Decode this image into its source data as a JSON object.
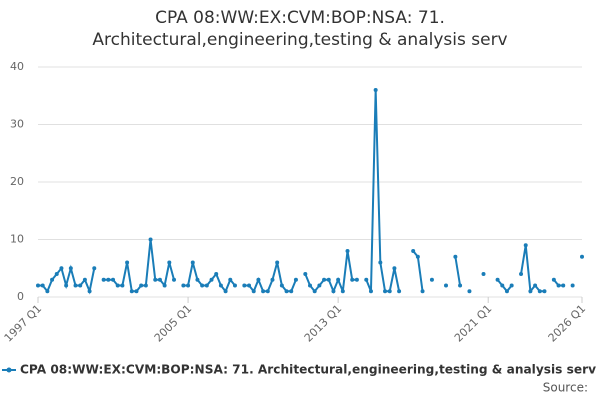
{
  "chart_data": {
    "type": "line",
    "title": [
      "CPA 08:WW:EX:CVM:BOP:NSA: 71.",
      "Architectural,engineering,testing & analysis serv"
    ],
    "categories": [
      "1997 Q1",
      null,
      null,
      null,
      null,
      null,
      null,
      null,
      null,
      null,
      null,
      null,
      null,
      null,
      null,
      null,
      null,
      null,
      null,
      null,
      null,
      null,
      null,
      null,
      null,
      null,
      null,
      null,
      null,
      null,
      null,
      null,
      "2005 Q1",
      null,
      null,
      null,
      null,
      null,
      null,
      null,
      null,
      null,
      null,
      null,
      null,
      null,
      null,
      null,
      null,
      null,
      null,
      null,
      null,
      null,
      null,
      null,
      null,
      null,
      null,
      null,
      null,
      null,
      null,
      null,
      "2013 Q1",
      null,
      null,
      null,
      null,
      null,
      null,
      null,
      null,
      null,
      null,
      null,
      null,
      null,
      null,
      null,
      null,
      null,
      null,
      null,
      null,
      null,
      null,
      null,
      null,
      null,
      null,
      null,
      null,
      null,
      null,
      null,
      "2021 Q1",
      null,
      null,
      null,
      null,
      null,
      null,
      null,
      null,
      null,
      null,
      null,
      null,
      null,
      null,
      null,
      null,
      null,
      null,
      null,
      "2026 Q1"
    ],
    "series": [
      {
        "name": "CPA 08:WW:EX:CVM:BOP:NSA: 71. Architectural,engineering,testing & analysis serv",
        "color": "#1a7db8",
        "values": [
          2,
          2,
          1,
          3,
          4,
          5,
          2,
          5,
          2,
          2,
          3,
          1,
          5,
          null,
          3,
          3,
          3,
          2,
          2,
          6,
          1,
          1,
          2,
          2,
          10,
          3,
          3,
          2,
          6,
          3,
          null,
          2,
          2,
          6,
          3,
          2,
          2,
          3,
          4,
          2,
          1,
          3,
          2,
          null,
          2,
          2,
          1,
          3,
          1,
          1,
          3,
          6,
          2,
          1,
          1,
          3,
          null,
          4,
          2,
          1,
          2,
          3,
          3,
          1,
          3,
          1,
          8,
          3,
          3,
          null,
          3,
          1,
          36,
          6,
          1,
          1,
          5,
          1,
          null,
          null,
          8,
          7,
          1,
          null,
          3,
          null,
          null,
          2,
          null,
          7,
          2,
          null,
          1,
          null,
          null,
          4,
          null,
          null,
          3,
          2,
          1,
          2,
          null,
          4,
          9,
          1,
          2,
          1,
          1,
          null,
          3,
          2,
          2,
          null,
          2,
          null,
          7
        ]
      }
    ],
    "ylim": [
      0,
      40
    ],
    "yticks": [
      0,
      10,
      20,
      30,
      40
    ],
    "grid": true,
    "source": "Source:"
  }
}
